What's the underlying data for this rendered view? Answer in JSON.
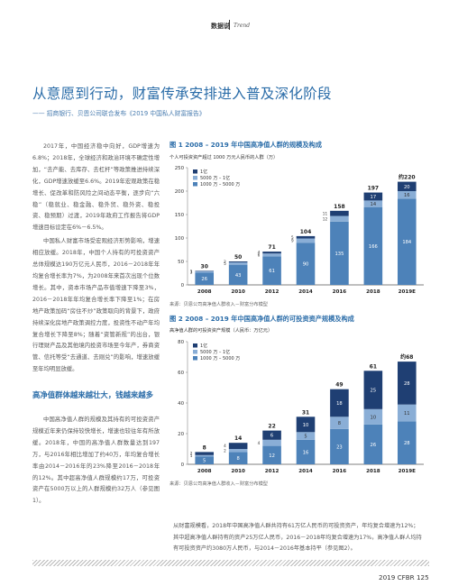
{
  "header": {
    "section_cn": "数据说",
    "section_en": "Trend"
  },
  "article": {
    "title": "从意愿到行动，财富传承安排进入普及深化阶段",
    "subtitle": "—— 招商银行、贝恩公司联合发布《2019 中国私人财富报告》",
    "paragraphs": [
      "2017年，中国经济稳中向好，GDP增速为6.8%；2018年，全球经济和政治环境不确定性增加，“去产能、去库存、去杠杆”等政策推进持续深化，GDP增速放缓至6.6%。2019年宏观政策在稳增长、促改革和防风险之间动态平衡，逐步向“六稳”（稳就业、稳金融、稳外贸、稳外资、稳投资、稳预期）过渡，2019年政府工作报告将GDP增速目标设定在6%－6.5%。",
      "中国私人财富市场受宏观经济形势影响，增速相应放缓。2018年，中国个人持有的可投资资产总体规模达190万亿元人民币，2016－2018年年均复合增长率为7%，为2008年来首次出现个位数增长。其中，资本市场产品市值增速下降至3%，2016－2018年年均复合增长率下降至1%；在房地产政策加码“房住不炒”政策取向的背景下，政府持续深化房地产政策调控力度，投资性不动产年均复合增长下降至8%；随着“资管新规”的出台，银行理财产品及其他境内投资市场至今年产，券商资管、信托等受“去通道、去刚兑”的影响，增速放缓至年均明显放缓。"
    ],
    "section_heading": "高净值群体越来越壮大，钱越来越多",
    "section_paragraph": "中国高净值人群的规模及其持有的可投资资产规模近年来仍保持较快增长，增速也较往年有所放缓。2018年，中国的高净值人群数量达到197万，与2016年相比增加了约40万，年均复合增长率由2014－2016年的23%降至2016－2018年的12%。其中超高净值人群规模约17万，可投资资产在5000万以上的人群规模约32万人（参见图1）。",
    "bottom_paragraph": "从财富规模看，2018年中国高净值人群共持有61万亿人民币的可投资资产，年均复合增速为12%；其中超高净值人群持有的资产25万亿人民币，2016－2018年均复合增速为17%，高净值人群人均持有可投资资产约3080万人民币，与2014－2016年基本持平（参见图2）。"
  },
  "figure1": {
    "title": "图 1  2008 – 2019 年中国高净值人群的规模及构成",
    "subtitle": "个人可投资资产超过 1000 万元人民币的人群（万）",
    "source": "来源：贝恩公司高净值人群收入－财富分布模型"
  },
  "figure2": {
    "title": "图 2  2008 – 2019 年中国高净值人群的可投资资产规模及构成",
    "subtitle": "高净值人群的可投资资产规模（人民币：万亿元）",
    "source": "来源：贝恩公司高净值人群收入－财富分布模型"
  },
  "footer": {
    "page": "2019 CFBR  125"
  },
  "chart_data": [
    {
      "type": "bar",
      "stacked": true,
      "title": "图 1  2008 – 2019 年中国高净值人群的规模及构成",
      "ylabel": "个人可投资资产超过 1000 万元人民币的人群（万）",
      "categories": [
        "2008",
        "2010",
        "2012",
        "2014",
        "2016",
        "2018",
        "2019E"
      ],
      "series": [
        {
          "name": "1000 万 – 5000 万",
          "color": "#4d82b9",
          "values": [
            26,
            43,
            61,
            90,
            135,
            166,
            184
          ]
        },
        {
          "name": "5000 万 – 1亿",
          "color": "#8aaed6",
          "values": [
            3,
            5,
            6,
            9,
            12,
            14,
            16
          ]
        },
        {
          "name": "1亿",
          "color": "#1f3f73",
          "values": [
            1,
            2,
            4,
            5,
            11,
            17,
            20
          ]
        }
      ],
      "totals": [
        "30",
        "50",
        "71",
        "104",
        "158",
        "197",
        "约220"
      ],
      "ylim": [
        0,
        250
      ],
      "yticks": [
        0,
        50,
        100,
        150,
        200,
        250
      ],
      "legend": "top-left"
    },
    {
      "type": "bar",
      "stacked": true,
      "title": "图 2  2008 – 2019 年中国高净值人群的可投资资产规模及构成",
      "ylabel": "高净值人群的可投资资产规模（人民币：万亿元）",
      "categories": [
        "2008",
        "2010",
        "2012",
        "2014",
        "2016",
        "2018",
        "2019E"
      ],
      "series": [
        {
          "name": "1000 万 – 5000 万",
          "color": "#4d82b9",
          "values": [
            5,
            8,
            12,
            16,
            23,
            26,
            28
          ]
        },
        {
          "name": "5000 万 – 1亿",
          "color": "#8aaed6",
          "values": [
            1,
            2,
            4,
            5,
            8,
            10,
            11
          ]
        },
        {
          "name": "1亿",
          "color": "#1f3f73",
          "values": [
            2,
            4,
            6,
            10,
            18,
            25,
            28
          ]
        }
      ],
      "totals": [
        "8",
        "14",
        "22",
        "31",
        "49",
        "61",
        "约68"
      ],
      "ylim": [
        0,
        80
      ],
      "yticks": [
        0,
        20,
        40,
        60,
        80
      ],
      "legend": "top-left"
    }
  ]
}
